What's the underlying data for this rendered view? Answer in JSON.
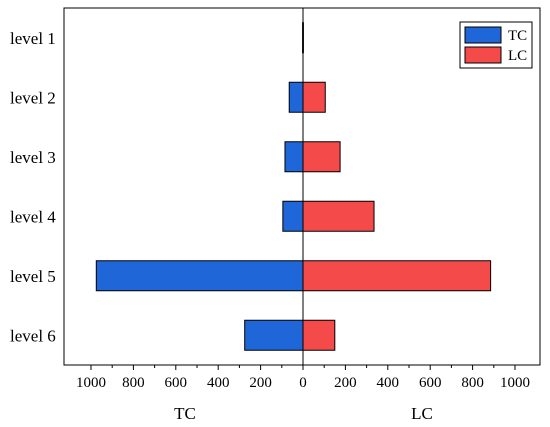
{
  "chart_data": {
    "type": "bar",
    "orientation": "horizontal-diverging",
    "categories": [
      "level 1",
      "level 2",
      "level 3",
      "level 4",
      "level 5",
      "level 6"
    ],
    "series": [
      {
        "name": "TC",
        "side": "left",
        "color": "#1f66d9",
        "values": [
          2,
          65,
          85,
          95,
          975,
          275
        ]
      },
      {
        "name": "LC",
        "side": "right",
        "color": "#f44a4a",
        "values": [
          2,
          105,
          175,
          335,
          885,
          150
        ]
      }
    ],
    "xlim": [
      -1000,
      1000
    ],
    "xticks": [
      -1000,
      -800,
      -600,
      -400,
      -200,
      0,
      200,
      400,
      600,
      800,
      1000
    ],
    "xtick_labels": [
      "1000",
      "800",
      "600",
      "400",
      "200",
      "0",
      "200",
      "400",
      "600",
      "800",
      "1000"
    ],
    "left_label": "TC",
    "right_label": "LC",
    "legend_position": "top-right",
    "grid": false
  }
}
